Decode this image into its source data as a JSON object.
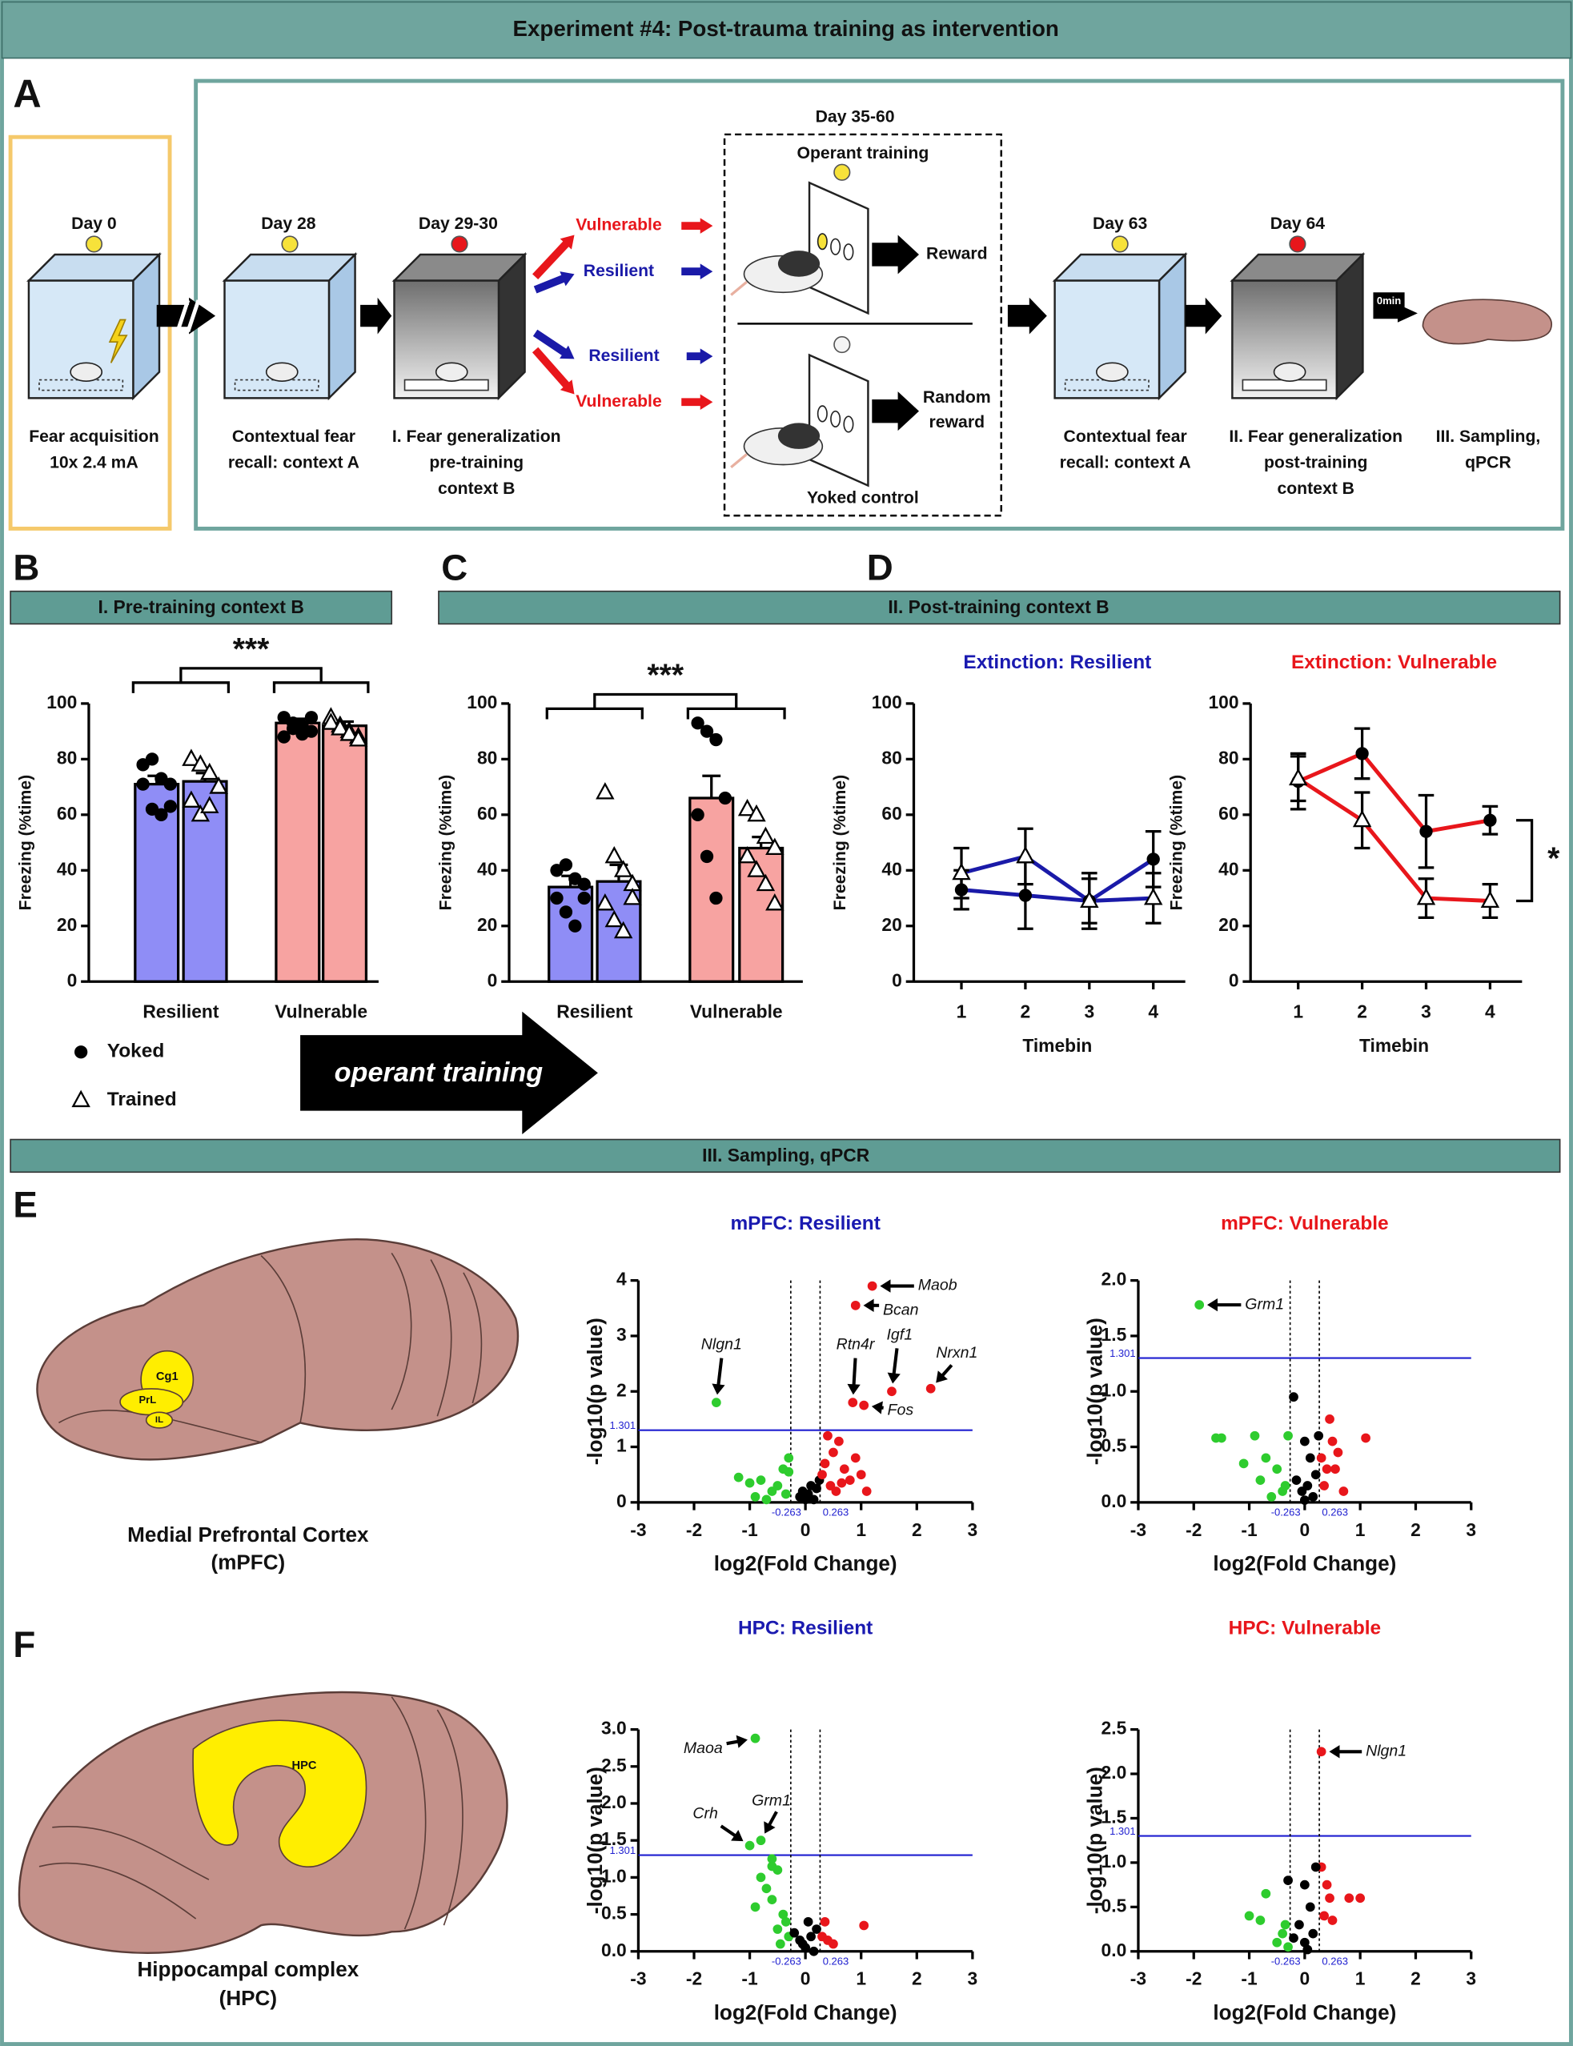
{
  "header": "Experiment #4: Post-trauma training as intervention",
  "panel_labels": [
    "A",
    "B",
    "C",
    "D",
    "E",
    "F"
  ],
  "panel_a": {
    "days": [
      "Day 0",
      "Day 28",
      "Day 29-30",
      "Day 35-60",
      "Day 63",
      "Day 64"
    ],
    "captions": [
      [
        "Fear acquisition",
        "10x 2.4 mA"
      ],
      [
        "Contextual fear",
        "recall: context A"
      ],
      [
        "I. Fear generalization",
        "pre-training",
        "context B"
      ],
      [
        "Contextual fear",
        "recall: context A"
      ],
      [
        "II. Fear generalization",
        "post-training",
        "context B"
      ],
      [
        "III. Sampling,",
        "qPCR"
      ]
    ],
    "groups": [
      "Vulnerable",
      "Resilient",
      "Resilient",
      "Vulnerable"
    ],
    "operant": "Operant training",
    "reward": "Reward",
    "random_reward": [
      "Random",
      "reward"
    ],
    "yoked_control": "Yoked control",
    "delay": "0min"
  },
  "sections": [
    "I. Pre-training context B",
    "II. Post-training context B",
    "III. Sampling, qPCR"
  ],
  "arrow_label": "operant training",
  "brains": [
    {
      "regions": [
        "Cg1",
        "PrL",
        "IL"
      ],
      "caption": [
        "Medial Prefrontal Cortex",
        "(mPFC)"
      ]
    },
    {
      "regions": [
        "HPC"
      ],
      "caption": [
        "Hippocampal complex",
        "(HPC)"
      ]
    }
  ],
  "chart_data": [
    {
      "type": "bar",
      "categories": [
        "Resilient",
        "Vulnerable"
      ],
      "colors": [
        "#8f8df6",
        "#f7a3a1"
      ],
      "ylabel": "Freezing (%time)",
      "ylim": [
        0,
        100
      ],
      "yticks": [
        0,
        20,
        40,
        60,
        80,
        100
      ],
      "annotation": "***",
      "series": [
        {
          "name": "Yoked",
          "marker": "circle",
          "values": [
            71,
            93
          ],
          "errors": [
            3,
            1.5
          ],
          "points": [
            [
              78,
              80,
              73,
              71,
              71,
              62,
              60,
              63
            ],
            [
              95,
              93,
              92,
              90,
              88,
              91,
              89,
              95
            ]
          ]
        },
        {
          "name": "Trained",
          "marker": "triangle",
          "values": [
            72,
            92
          ],
          "errors": [
            3,
            1.5
          ],
          "points": [
            [
              80,
              78,
              75,
              70,
              65,
              60,
              63,
              70
            ],
            [
              95,
              92,
              90,
              88,
              93,
              91,
              89,
              87
            ]
          ]
        }
      ]
    },
    {
      "type": "bar",
      "categories": [
        "Resilient",
        "Vulnerable"
      ],
      "colors": [
        "#8f8df6",
        "#f7a3a1"
      ],
      "ylabel": "Freezing (%time)",
      "ylim": [
        0,
        100
      ],
      "yticks": [
        0,
        20,
        40,
        60,
        80,
        100
      ],
      "annotation": "***",
      "series": [
        {
          "marker": "circle",
          "values": [
            34,
            66
          ],
          "errors": [
            4,
            8
          ],
          "points": [
            [
              40,
              42,
              37,
              35,
              30,
              25,
              20,
              30
            ],
            [
              93,
              90,
              87,
              66,
              60,
              45,
              30
            ]
          ]
        },
        {
          "marker": "triangle",
          "values": [
            36,
            48
          ],
          "errors": [
            6,
            4
          ],
          "points": [
            [
              68,
              45,
              40,
              35,
              28,
              22,
              18,
              30
            ],
            [
              62,
              60,
              52,
              48,
              45,
              40,
              35,
              28
            ]
          ]
        }
      ]
    },
    {
      "type": "line",
      "title": "Extinction: Resilient",
      "title_color": "#1a1ab0",
      "xlabel": "Timebin",
      "ylabel": "Freezing (%time)",
      "x": [
        1,
        2,
        3,
        4
      ],
      "xlim": [
        0.5,
        4.5
      ],
      "xticks": [
        1,
        2,
        3,
        4
      ],
      "ylim": [
        0,
        100
      ],
      "yticks": [
        0,
        20,
        40,
        60,
        80,
        100
      ],
      "series": [
        {
          "marker": "circle",
          "color": "#1a1aa8",
          "values": [
            33,
            31,
            29,
            44
          ],
          "errors": [
            7,
            12,
            10,
            10
          ]
        },
        {
          "marker": "triangle",
          "color": "#1a1aa8",
          "values": [
            39,
            45,
            29,
            30
          ],
          "errors": [
            9,
            10,
            8,
            9
          ]
        }
      ]
    },
    {
      "type": "line",
      "title": "Extinction: Vulnerable",
      "title_color": "#e8161b",
      "xlabel": "Timebin",
      "ylabel": "Freezing (%time)",
      "x": [
        1,
        2,
        3,
        4
      ],
      "xlim": [
        0.5,
        4.5
      ],
      "xticks": [
        1,
        2,
        3,
        4
      ],
      "ylim": [
        0,
        100
      ],
      "yticks": [
        0,
        20,
        40,
        60,
        80,
        100
      ],
      "annotation": "*",
      "series": [
        {
          "marker": "circle",
          "color": "#e8161b",
          "values": [
            72,
            82,
            54,
            58
          ],
          "errors": [
            10,
            9,
            13,
            5
          ]
        },
        {
          "marker": "triangle",
          "color": "#e8161b",
          "values": [
            73,
            58,
            30,
            29
          ],
          "errors": [
            8,
            10,
            7,
            6
          ]
        }
      ]
    },
    {
      "type": "scatter",
      "title": "mPFC: Resilient",
      "title_color": "#1a1ab0",
      "xlabel": "log2(Fold Change)",
      "ylabel": "-log10(p value)",
      "xlim": [
        -3,
        3
      ],
      "xticks": [
        -3,
        -2,
        -1,
        0,
        1,
        2,
        3
      ],
      "ylim": [
        0,
        4
      ],
      "yticks": [
        0,
        1,
        2,
        3,
        4
      ],
      "hline": 1.301,
      "hline_color": "#1f1fd0",
      "vlines": [
        -0.263,
        0.263
      ],
      "series": [
        {
          "color": "#2ecc2e",
          "x": [
            -1.6
          ],
          "values": [
            1.8
          ],
          "point_labels": [
            "Nlgn1"
          ]
        },
        {
          "color": "#2ecc2e",
          "x": [
            -0.3,
            -0.4,
            -0.5,
            -0.8,
            -1.0,
            -0.6,
            -0.35,
            -0.7,
            -1.2,
            -0.9,
            -0.3
          ],
          "values": [
            0.8,
            0.6,
            0.3,
            0.4,
            0.35,
            0.2,
            0.15,
            0.05,
            0.45,
            0.1,
            0.55
          ]
        },
        {
          "color": "#000000",
          "x": [
            0,
            0.05,
            0.1,
            -0.1,
            0.2,
            0.15,
            -0.05,
            0.25
          ],
          "values": [
            0.05,
            0.15,
            0.3,
            0.1,
            0.25,
            0.05,
            0.2,
            0.4
          ]
        },
        {
          "color": "#e8161b",
          "x": [
            1.2,
            0.9,
            0.85,
            1.55,
            2.25,
            1.05
          ],
          "values": [
            3.9,
            3.55,
            1.8,
            2.0,
            2.05,
            1.75
          ],
          "point_labels": [
            "Maob",
            "Bcan",
            "Rtn4r",
            "Igf1",
            "Nrxn1",
            "Fos"
          ]
        },
        {
          "color": "#e8161b",
          "x": [
            0.4,
            0.5,
            0.6,
            0.7,
            0.3,
            0.9,
            1.0,
            0.45,
            0.55,
            0.8,
            1.1,
            0.35,
            0.65
          ],
          "values": [
            1.2,
            0.9,
            1.1,
            0.6,
            0.5,
            0.8,
            0.5,
            0.3,
            0.2,
            0.4,
            0.2,
            0.7,
            0.35
          ]
        }
      ]
    },
    {
      "type": "scatter",
      "title": "mPFC: Vulnerable",
      "title_color": "#e8161b",
      "xlabel": "log2(Fold Change)",
      "ylabel": "-log10(p value)",
      "xlim": [
        -3,
        3
      ],
      "xticks": [
        -3,
        -2,
        -1,
        0,
        1,
        2,
        3
      ],
      "ylim": [
        0,
        2
      ],
      "yticks": [
        {
          "value": 0,
          "label": "0.0"
        },
        0.5,
        {
          "value": 1,
          "label": "1.0"
        },
        1.5,
        {
          "value": 2,
          "label": "2.0"
        }
      ],
      "hline": 1.301,
      "hline_color": "#1f1fd0",
      "vlines": [
        -0.263,
        0.263
      ],
      "series": [
        {
          "color": "#2ecc2e",
          "x": [
            -1.9
          ],
          "values": [
            1.78
          ],
          "point_labels": [
            "Grm1"
          ]
        },
        {
          "color": "#2ecc2e",
          "x": [
            -1.6,
            -1.5,
            -0.9,
            -0.7,
            -0.5,
            -0.8,
            -0.4,
            -0.3,
            -0.6,
            -1.1,
            -0.35
          ],
          "values": [
            0.58,
            0.58,
            0.6,
            0.4,
            0.3,
            0.2,
            0.1,
            0.6,
            0.05,
            0.35,
            0.15
          ]
        },
        {
          "color": "#000000",
          "x": [
            -0.2,
            0,
            0.1,
            0.2,
            0.05,
            -0.05,
            0.15,
            0.25,
            0,
            -0.15
          ],
          "values": [
            0.95,
            0.55,
            0.4,
            0.25,
            0.15,
            0.1,
            0.05,
            0.6,
            0.02,
            0.2
          ]
        },
        {
          "color": "#e8161b",
          "x": [
            0.45,
            0.5,
            0.3,
            0.6,
            0.4,
            0.55,
            1.1,
            0.35,
            0.7
          ],
          "values": [
            0.75,
            0.55,
            0.4,
            0.45,
            0.3,
            0.3,
            0.58,
            0.15,
            0.1
          ]
        }
      ]
    },
    {
      "type": "scatter",
      "title": "HPC: Resilient",
      "title_color": "#1a1ab0",
      "xlabel": "log2(Fold Change)",
      "ylabel": "-log10(p value)",
      "xlim": [
        -3,
        3
      ],
      "xticks": [
        -3,
        -2,
        -1,
        0,
        1,
        2,
        3
      ],
      "ylim": [
        0,
        3
      ],
      "yticks": [
        {
          "value": 0,
          "label": "0.0"
        },
        0.5,
        {
          "value": 1,
          "label": "1.0"
        },
        1.5,
        {
          "value": 2,
          "label": "2.0"
        },
        2.5,
        {
          "value": 3,
          "label": "3.0"
        }
      ],
      "hline": 1.301,
      "hline_color": "#1f1fd0",
      "vlines": [
        -0.263,
        0.263
      ],
      "series": [
        {
          "color": "#2ecc2e",
          "x": [
            -0.9,
            -1.0,
            -0.8
          ],
          "values": [
            2.88,
            1.43,
            1.5
          ],
          "point_labels": [
            "Maoa",
            "Crh",
            "Grm1"
          ]
        },
        {
          "color": "#2ecc2e",
          "x": [
            -0.6,
            -0.5,
            -0.8,
            -0.7,
            -0.6,
            -0.9,
            -0.4,
            -0.5,
            -0.3,
            -0.35,
            -0.45,
            -0.6
          ],
          "values": [
            1.25,
            1.1,
            1.0,
            0.85,
            0.7,
            0.6,
            0.5,
            0.3,
            0.2,
            0.4,
            0.1,
            1.15
          ]
        },
        {
          "color": "#000000",
          "x": [
            0,
            0.1,
            -0.1,
            0.2,
            0.05,
            -0.05,
            0.15,
            -0.2
          ],
          "values": [
            0.05,
            0.2,
            0.15,
            0.3,
            0.4,
            0.1,
            0,
            0.25
          ]
        },
        {
          "color": "#e8161b",
          "x": [
            0.35,
            0.3,
            0.4,
            1.05,
            0.5
          ],
          "values": [
            0.4,
            0.2,
            0.15,
            0.35,
            0.1
          ]
        }
      ]
    },
    {
      "type": "scatter",
      "title": "HPC: Vulnerable",
      "title_color": "#e8161b",
      "xlabel": "log2(Fold Change)",
      "ylabel": "-log10(p value)",
      "xlim": [
        -3,
        3
      ],
      "xticks": [
        -3,
        -2,
        -1,
        0,
        1,
        2,
        3
      ],
      "ylim": [
        0,
        2.5
      ],
      "yticks": [
        {
          "value": 0,
          "label": "0.0"
        },
        0.5,
        {
          "value": 1,
          "label": "1.0"
        },
        1.5,
        {
          "value": 2,
          "label": "2.0"
        },
        2.5
      ],
      "hline": 1.301,
      "hline_color": "#1f1fd0",
      "vlines": [
        -0.263,
        0.263
      ],
      "series": [
        {
          "color": "#e8161b",
          "x": [
            0.3
          ],
          "values": [
            2.25
          ],
          "point_labels": [
            "Nlgn1"
          ]
        },
        {
          "color": "#e8161b",
          "x": [
            0.3,
            0.45,
            0.8,
            1.0,
            0.35,
            0.5,
            0.4
          ],
          "values": [
            0.95,
            0.6,
            0.6,
            0.6,
            0.4,
            0.35,
            0.75
          ]
        },
        {
          "color": "#000000",
          "x": [
            -0.3,
            0,
            0.2,
            0.1,
            -0.1,
            0,
            0.15,
            -0.2,
            0.05
          ],
          "values": [
            0.8,
            0.75,
            0.95,
            0.5,
            0.3,
            0.1,
            0.2,
            0.15,
            0.02
          ]
        },
        {
          "color": "#2ecc2e",
          "x": [
            -0.7,
            -1.0,
            -0.8,
            -0.4,
            -0.5,
            -0.3,
            -0.35
          ],
          "values": [
            0.65,
            0.4,
            0.35,
            0.2,
            0.1,
            0.05,
            0.3
          ]
        }
      ]
    }
  ]
}
